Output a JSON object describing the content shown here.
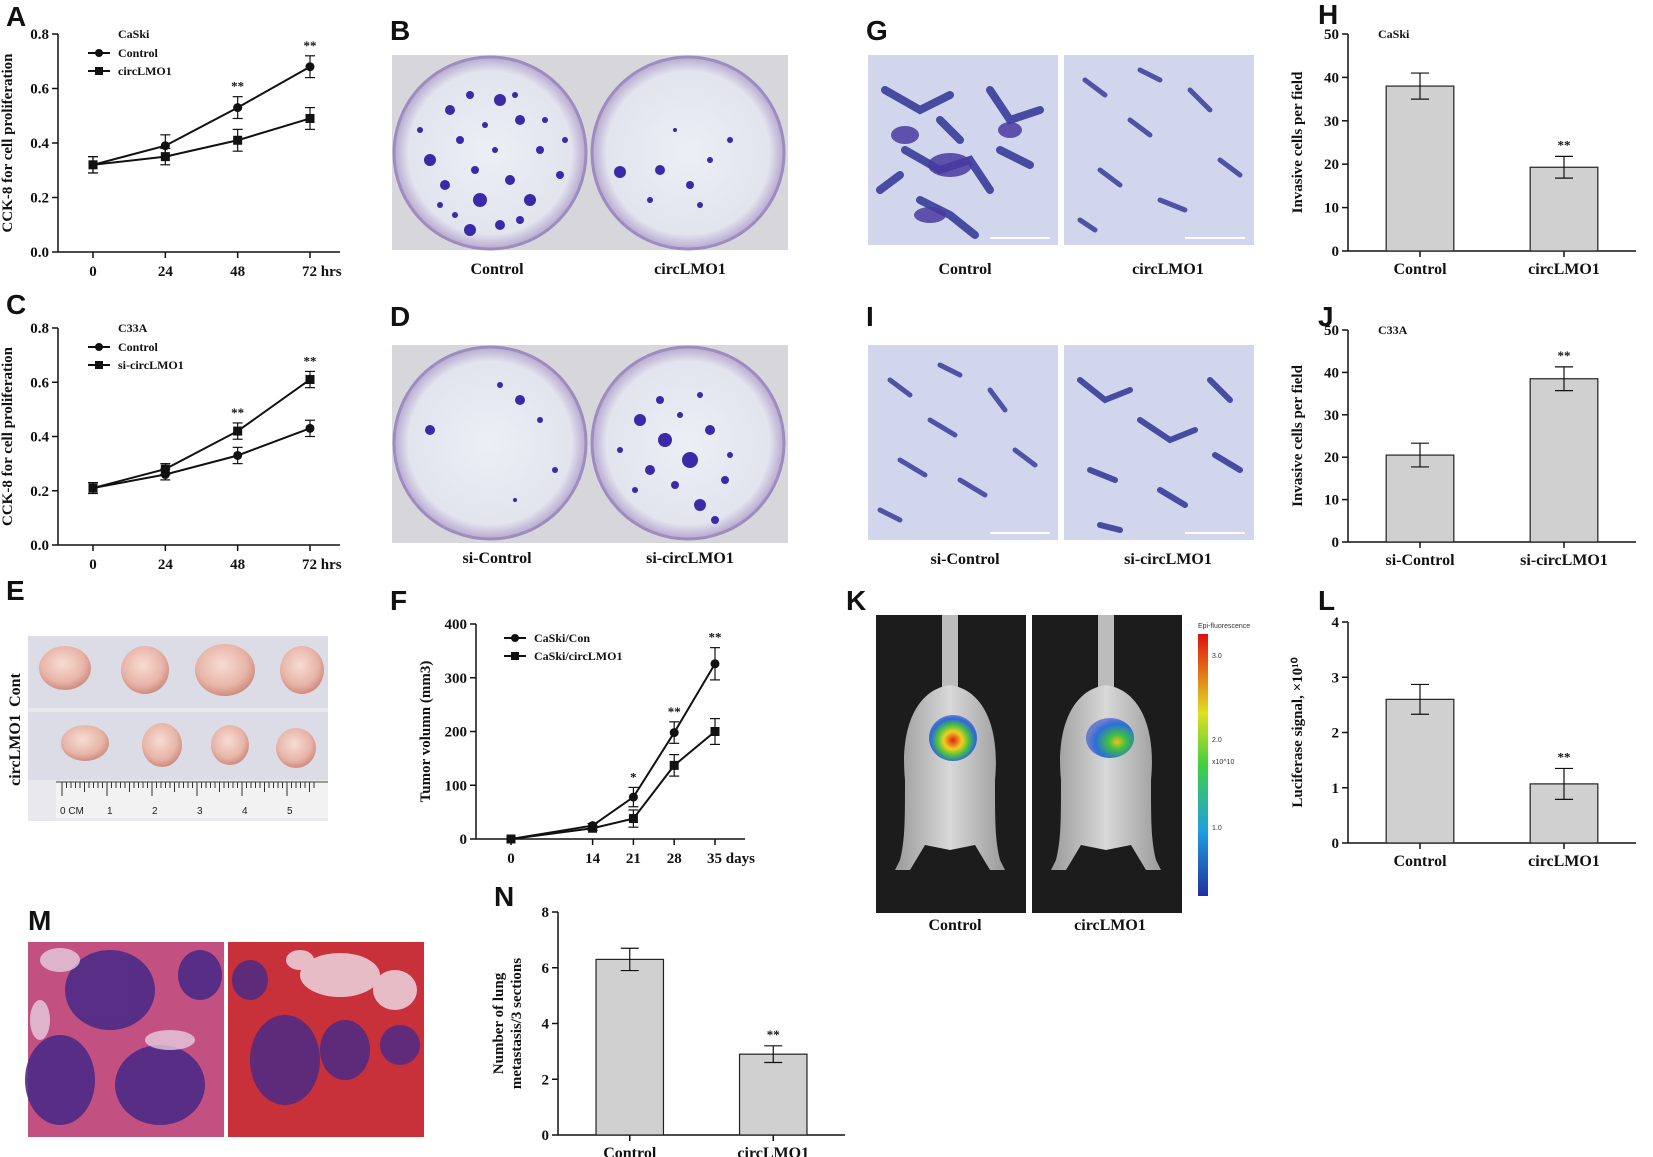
{
  "panels": {
    "A": "A",
    "B": "B",
    "C": "C",
    "D": "D",
    "E": "E",
    "F": "F",
    "G": "G",
    "H": "H",
    "I": "I",
    "J": "J",
    "K": "K",
    "L": "L",
    "M": "M",
    "N": "N"
  },
  "images": {
    "B": {
      "labels": [
        "Control",
        "circLMO1"
      ]
    },
    "D": {
      "labels": [
        "si-Control",
        "si-circLMO1"
      ]
    },
    "E": {
      "row_labels": [
        "Cont",
        "circLMO1"
      ],
      "ruler_ticks": [
        "0 CM",
        "1",
        "2",
        "3",
        "4",
        "5"
      ]
    },
    "G": {
      "labels": [
        "Control",
        "circLMO1"
      ]
    },
    "I": {
      "labels": [
        "si-Control",
        "si-circLMO1"
      ]
    },
    "K": {
      "labels": [
        "Control",
        "circLMO1"
      ],
      "colorbar_title": "Epi-fluorescence",
      "colorbar_ticks": [
        "3.0",
        "2.0",
        "1.0"
      ],
      "colorbar_unit": "x10^10"
    }
  },
  "colors": {
    "bar_fill": "#d0d0d0",
    "bar_stroke": "#222222",
    "line": "#111111"
  },
  "chart_data": [
    {
      "id": "A",
      "type": "line",
      "x": [
        0,
        24,
        48,
        72
      ],
      "xticks": [
        "0",
        "24",
        "48",
        "72 hrs"
      ],
      "ylabel": "CCK-8 for cell proliferation",
      "ylim": [
        0,
        0.8
      ],
      "yticks": [
        "0.0",
        "0.2",
        "0.4",
        "0.6",
        "0.8"
      ],
      "legend_title": "CaSki",
      "series": [
        {
          "name": "Control",
          "marker": "circle",
          "values": [
            0.32,
            0.39,
            0.53,
            0.68
          ],
          "errors": [
            0.03,
            0.04,
            0.04,
            0.04
          ]
        },
        {
          "name": "circLMO1",
          "marker": "square",
          "values": [
            0.32,
            0.35,
            0.41,
            0.49
          ],
          "errors": [
            0.03,
            0.03,
            0.04,
            0.04
          ]
        }
      ],
      "annotations": [
        {
          "x": 48,
          "text": "**"
        },
        {
          "x": 72,
          "text": "**"
        }
      ]
    },
    {
      "id": "C",
      "type": "line",
      "x": [
        0,
        24,
        48,
        72
      ],
      "xticks": [
        "0",
        "24",
        "48",
        "72 hrs"
      ],
      "ylabel": "CCK-8 for cell proliferation",
      "ylim": [
        0,
        0.8
      ],
      "yticks": [
        "0.0",
        "0.2",
        "0.4",
        "0.6",
        "0.8"
      ],
      "legend_title": "C33A",
      "series": [
        {
          "name": "Control",
          "marker": "circle",
          "values": [
            0.21,
            0.26,
            0.33,
            0.43
          ],
          "errors": [
            0.02,
            0.02,
            0.03,
            0.03
          ]
        },
        {
          "name": "si-circLMO1",
          "marker": "square",
          "values": [
            0.21,
            0.28,
            0.42,
            0.61
          ],
          "errors": [
            0.02,
            0.02,
            0.03,
            0.03
          ]
        }
      ],
      "annotations": [
        {
          "x": 48,
          "text": "**"
        },
        {
          "x": 72,
          "text": "**"
        }
      ]
    },
    {
      "id": "F",
      "type": "line",
      "x": [
        0,
        14,
        21,
        28,
        35
      ],
      "xticks": [
        "0",
        "14",
        "21",
        "28",
        "35 days"
      ],
      "ylabel": "Tumor volumn (mm3)",
      "ylim": [
        0,
        400
      ],
      "yticks": [
        "0",
        "100",
        "200",
        "300",
        "400"
      ],
      "series": [
        {
          "name": "CaSki/Con",
          "marker": "circle",
          "values": [
            0,
            25,
            78,
            198,
            326
          ],
          "errors": [
            0,
            4,
            18,
            20,
            30
          ]
        },
        {
          "name": "CaSki/circLMO1",
          "marker": "square",
          "values": [
            0,
            20,
            38,
            137,
            200
          ],
          "errors": [
            0,
            4,
            16,
            20,
            24
          ]
        }
      ],
      "annotations": [
        {
          "x": 21,
          "text": "*"
        },
        {
          "x": 28,
          "text": "**"
        },
        {
          "x": 35,
          "text": "**"
        }
      ]
    },
    {
      "id": "H",
      "type": "bar",
      "title": "CaSki",
      "categories": [
        "Control",
        "circLMO1"
      ],
      "values": [
        38,
        19.3
      ],
      "errors": [
        3,
        2.5
      ],
      "ylabel": "Invasive cells per field",
      "ylim": [
        0,
        50
      ],
      "yticks": [
        "0",
        "10",
        "20",
        "30",
        "40",
        "50"
      ],
      "annotations": [
        "",
        "**"
      ]
    },
    {
      "id": "J",
      "type": "bar",
      "title": "C33A",
      "categories": [
        "si-Control",
        "si-circLMO1"
      ],
      "values": [
        20.5,
        38.5
      ],
      "errors": [
        2.8,
        2.8
      ],
      "ylabel": "Invasive cells per field",
      "ylim": [
        0,
        50
      ],
      "yticks": [
        "0",
        "10",
        "20",
        "30",
        "40",
        "50"
      ],
      "annotations": [
        "",
        "**"
      ]
    },
    {
      "id": "L",
      "type": "bar",
      "categories": [
        "Control",
        "circLMO1"
      ],
      "values": [
        2.6,
        1.07
      ],
      "errors": [
        0.27,
        0.28
      ],
      "ylabel": "Luciferase signal, ×10¹⁰",
      "ylim": [
        0,
        4
      ],
      "yticks": [
        "0",
        "1",
        "2",
        "3",
        "4"
      ],
      "annotations": [
        "",
        "**"
      ]
    },
    {
      "id": "N",
      "type": "bar",
      "categories": [
        "Control",
        "circLMO1"
      ],
      "values": [
        6.3,
        2.9
      ],
      "errors": [
        0.4,
        0.3
      ],
      "ylabel": [
        "Number of lung",
        "metastasis/3 sections"
      ],
      "ylim": [
        0,
        8
      ],
      "yticks": [
        "0",
        "2",
        "4",
        "6",
        "8"
      ],
      "annotations": [
        "",
        "**"
      ]
    }
  ]
}
